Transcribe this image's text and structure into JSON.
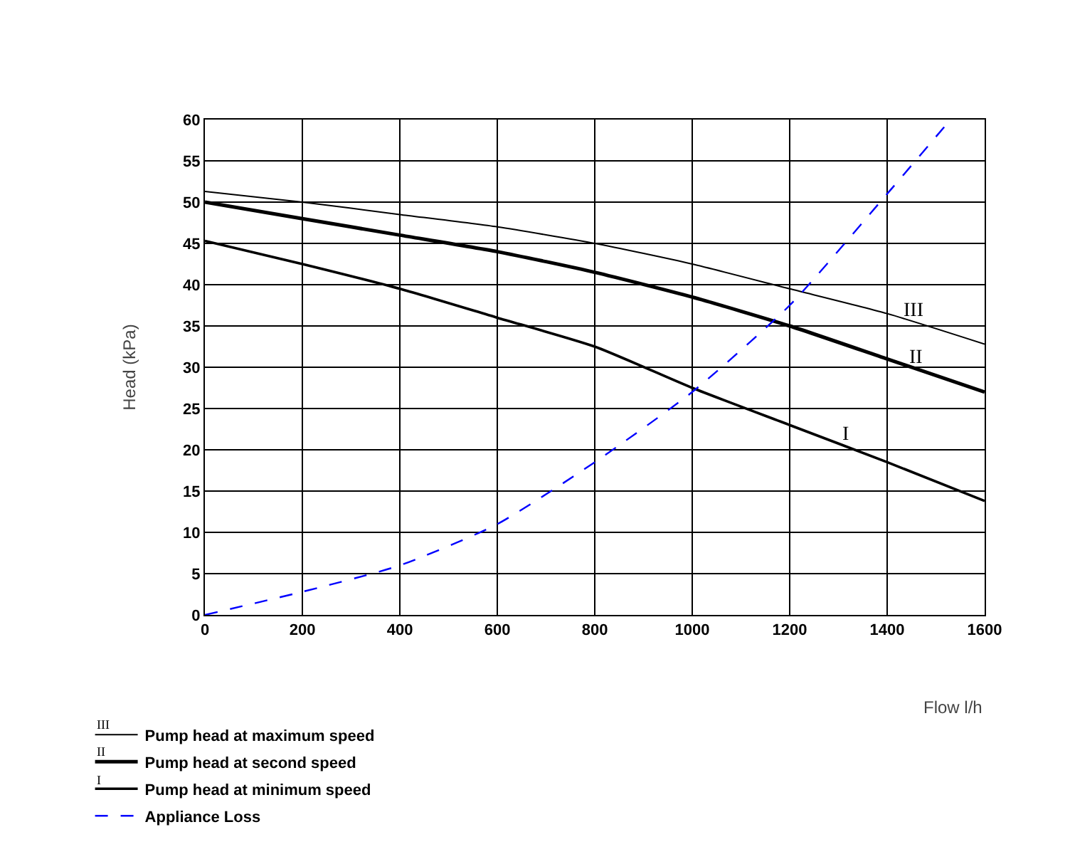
{
  "chart_data": {
    "type": "line",
    "xlabel": "Flow l/h",
    "ylabel": "Head (kPa)",
    "x": [
      0,
      200,
      400,
      600,
      800,
      1000,
      1200,
      1400,
      1600
    ],
    "series": [
      {
        "name": "Pump head at maximum speed",
        "color": "#000000",
        "values": [
          51.3,
          50,
          48.5,
          47,
          45,
          42.5,
          39.5,
          36.5,
          32.8
        ]
      },
      {
        "name": "Pump head at second speed",
        "color": "#000000",
        "values": [
          50,
          48,
          46,
          44,
          41.5,
          38.5,
          35,
          31,
          27
        ]
      },
      {
        "name": "Pump head at minimum speed",
        "color": "#000000",
        "values": [
          45.3,
          42.5,
          39.5,
          36,
          32.5,
          27.5,
          23,
          18.5,
          13.8
        ]
      },
      {
        "name": "Appliance Loss",
        "color": "#0000ff",
        "line_style": "dashed",
        "x": [
          0,
          200,
          400,
          600,
          800,
          1000,
          1200,
          1400,
          1530
        ],
        "values": [
          0,
          2.8,
          6,
          11,
          18.5,
          27,
          37.5,
          51,
          60
        ]
      }
    ],
    "annotations": [
      "III",
      "II",
      "I",
      "III",
      "II",
      "I"
    ],
    "xlim": [
      0,
      1600
    ],
    "xticks": [
      0,
      200,
      400,
      600,
      800,
      1000,
      1200,
      1400,
      1600
    ],
    "ylim": [
      0,
      60
    ],
    "yticks": [
      0,
      5,
      10,
      15,
      20,
      25,
      30,
      35,
      40,
      45,
      50,
      55,
      60
    ],
    "grid": true,
    "legend": "bottom left",
    "marker": "none",
    "line_style": "solid"
  }
}
